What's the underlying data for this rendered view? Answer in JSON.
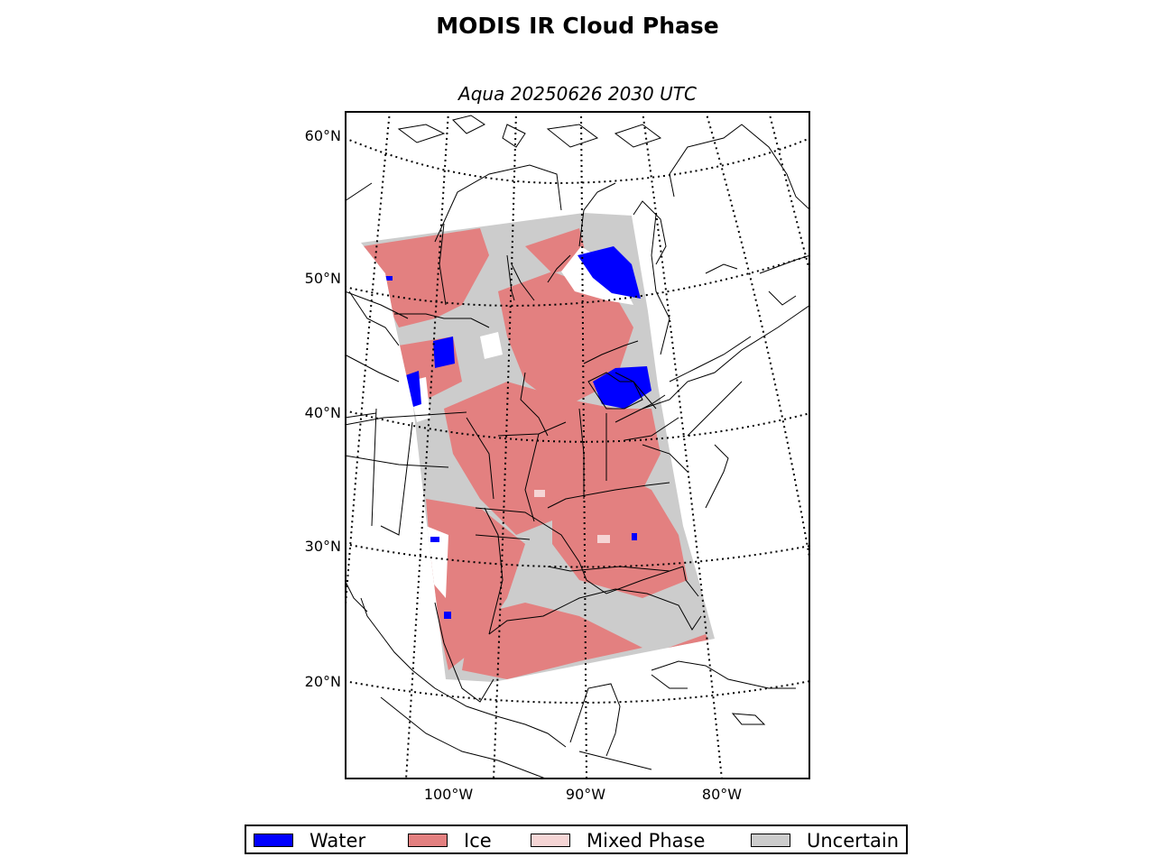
{
  "title": "MODIS IR Cloud Phase",
  "subtitle": "Aqua 20250626 2030 UTC",
  "lat_labels": [
    "60°N",
    "50°N",
    "40°N",
    "30°N",
    "20°N"
  ],
  "lon_labels": [
    "100°W",
    "90°W",
    "80°W"
  ],
  "legend": [
    {
      "label": "Water",
      "color": "#0000ff"
    },
    {
      "label": "Ice",
      "color": "#e38080"
    },
    {
      "label": "Mixed Phase",
      "color": "#f5d5d5"
    },
    {
      "label": "Uncertain",
      "color": "#cccccc"
    }
  ]
}
